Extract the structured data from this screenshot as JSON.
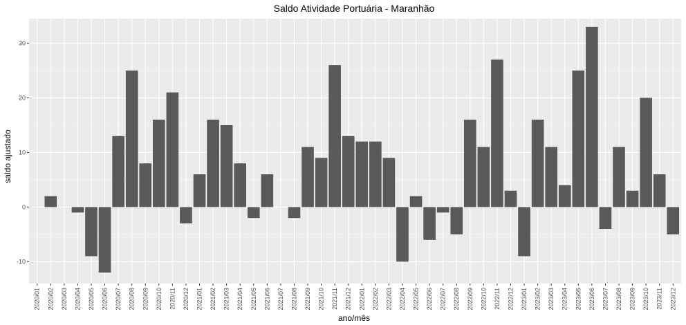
{
  "chart_data": {
    "type": "bar",
    "title": "Saldo Atividade Portuária - Maranhão",
    "xlabel": "ano/mês",
    "ylabel": "saldo ajustado",
    "ylim": [
      -14,
      34.5
    ],
    "yticks": [
      -10,
      0,
      10,
      20,
      30
    ],
    "grid": true,
    "legend": "none",
    "colors": {
      "bar": "#595959",
      "panel": "#ebebeb",
      "grid_major": "#ffffff"
    },
    "categories": [
      "2020/01",
      "2020/02",
      "2020/03",
      "2020/04",
      "2020/05",
      "2020/06",
      "2020/07",
      "2020/08",
      "2020/09",
      "2020/10",
      "2020/11",
      "2020/12",
      "2021/01",
      "2021/02",
      "2021/03",
      "2021/04",
      "2021/05",
      "2021/06",
      "2021/07",
      "2021/08",
      "2021/09",
      "2021/10",
      "2021/11",
      "2021/12",
      "2022/01",
      "2022/02",
      "2022/03",
      "2022/04",
      "2022/05",
      "2022/06",
      "2022/07",
      "2022/08",
      "2022/09",
      "2022/10",
      "2022/11",
      "2022/12",
      "2023/01",
      "2023/02",
      "2023/03",
      "2023/04",
      "2023/05",
      "2023/06",
      "2023/07",
      "2023/08",
      "2023/09",
      "2023/10",
      "2023/11",
      "2023/12"
    ],
    "values": [
      0,
      2,
      0,
      -1,
      -9,
      -12,
      13,
      25,
      8,
      16,
      21,
      -3,
      6,
      16,
      15,
      8,
      -2,
      6,
      0,
      -2,
      11,
      9,
      26,
      13,
      12,
      12,
      9,
      -10,
      2,
      -6,
      -1,
      -5,
      16,
      11,
      27,
      3,
      -9,
      16,
      11,
      4,
      25,
      33,
      -4,
      11,
      3,
      20,
      6,
      -5
    ]
  }
}
